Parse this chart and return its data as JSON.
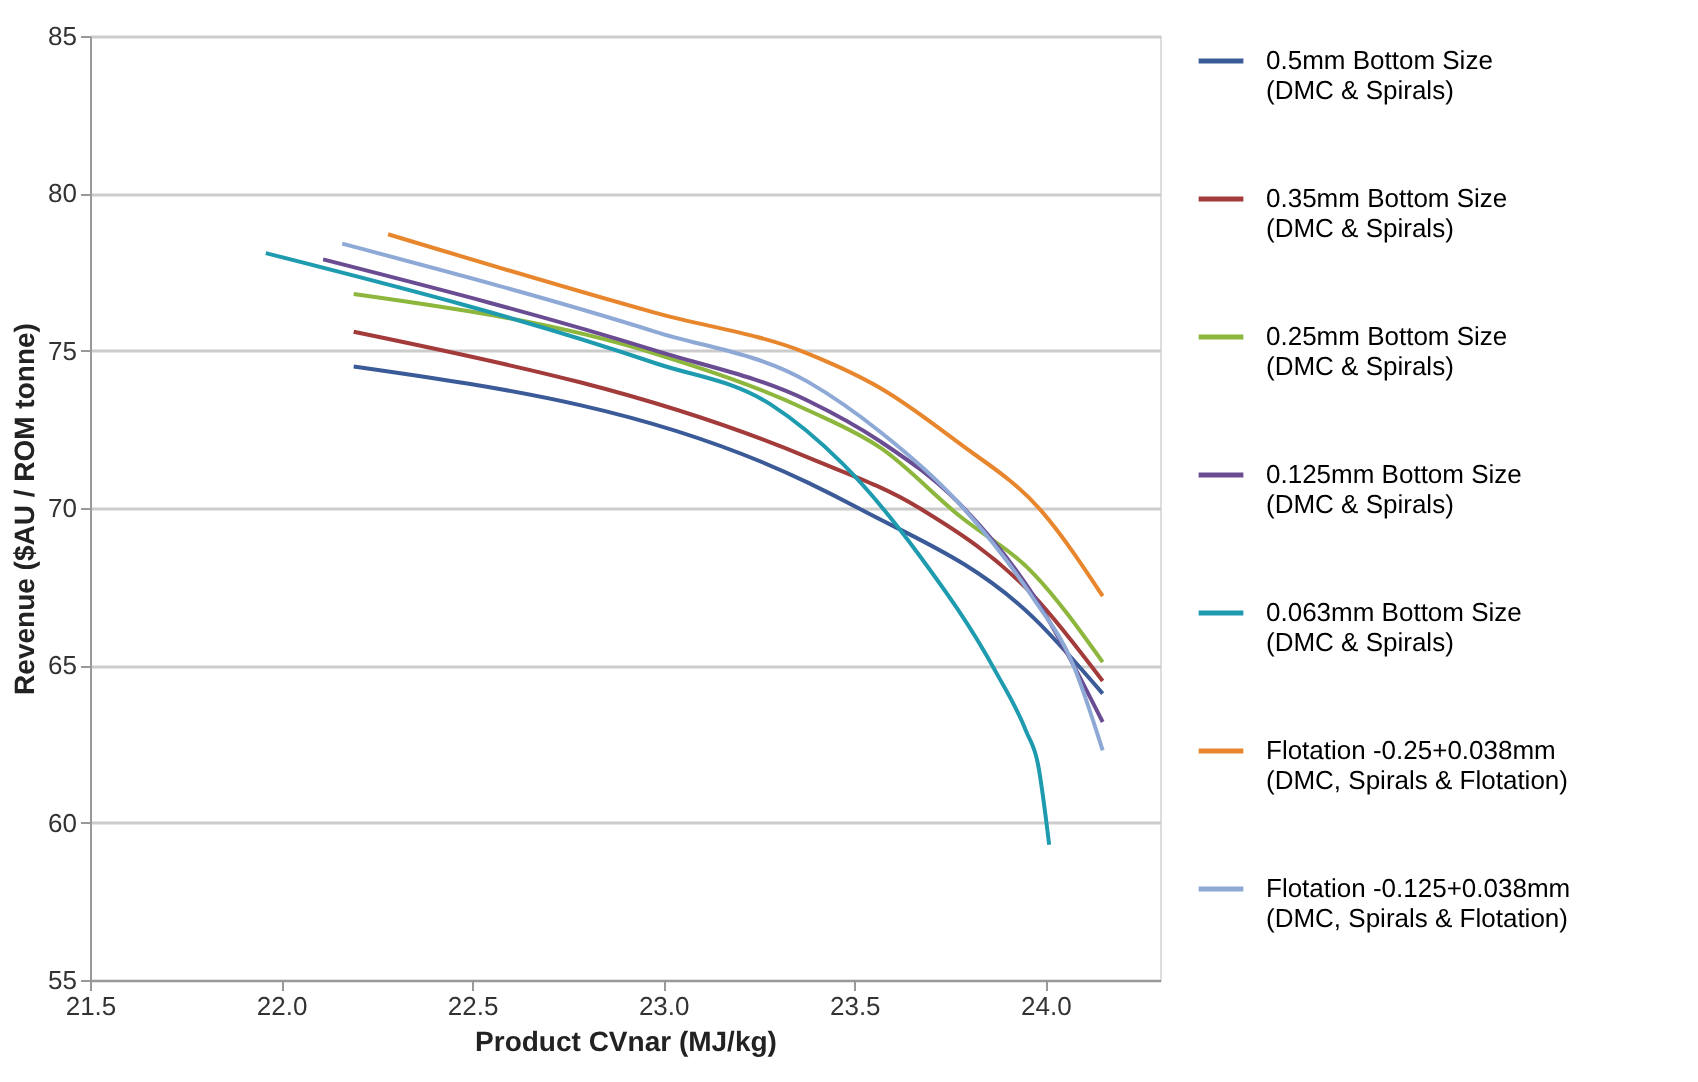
{
  "chart_data": {
    "type": "line",
    "xlabel": "Product CVnar (MJ/kg)",
    "ylabel": "Revenue ($AU / ROM tonne)",
    "xlim": [
      21.5,
      24.3
    ],
    "xticks": [
      {
        "value": 21.5,
        "label": "21.5"
      },
      {
        "value": 22,
        "label": "22.0"
      },
      {
        "value": 22.5,
        "label": "22.5"
      },
      {
        "value": 23,
        "label": "23.0"
      },
      {
        "value": 23.5,
        "label": "23.5"
      },
      {
        "value": 24,
        "label": "24.0"
      }
    ],
    "ylim": [
      55,
      85
    ],
    "yticks": [
      55,
      60,
      65,
      70,
      75,
      80,
      85
    ],
    "grid": "y",
    "legend": "right",
    "marker": "none",
    "line_style": "solid",
    "series": [
      {
        "name": "0.5mm Bottom Size (DMC & Spirals)",
        "color": "#3a5a98",
        "x": [
          22.19,
          23.38,
          23.51,
          23.97,
          24.15
        ],
        "values": [
          74.5,
          70.8,
          70.0,
          66.5,
          64.1
        ]
      },
      {
        "name": "0.35mm Bottom Size (DMC & Spirals)",
        "color": "#a23b3a",
        "x": [
          22.19,
          23.38,
          23.67,
          23.97,
          24.15
        ],
        "values": [
          75.6,
          71.6,
          70.0,
          67.2,
          64.5
        ]
      },
      {
        "name": "0.25mm Bottom Size (DMC & Spirals)",
        "color": "#8cb63c",
        "x": [
          22.19,
          22.98,
          23.38,
          23.57,
          23.77,
          23.97,
          24.15
        ],
        "values": [
          76.8,
          74.9,
          73.1,
          71.9,
          69.8,
          67.9,
          65.1
        ]
      },
      {
        "name": "0.125mm Bottom Size (DMC & Spirals)",
        "color": "#6a4c93",
        "x": [
          22.11,
          22.98,
          23.38,
          23.57,
          23.77,
          23.97,
          24.15
        ],
        "values": [
          77.9,
          75.0,
          73.4,
          72.1,
          70.2,
          67.2,
          63.2
        ]
      },
      {
        "name": "0.063mm Bottom Size (DMC & Spirals)",
        "color": "#1f9bb0",
        "x": [
          21.96,
          22.98,
          23.28,
          23.47,
          23.67,
          23.87,
          23.95,
          23.98,
          24.01
        ],
        "values": [
          78.1,
          74.6,
          73.3,
          71.4,
          68.5,
          64.8,
          62.9,
          61.9,
          59.3
        ]
      },
      {
        "name": "Flotation -0.25+0.038mm (DMC, Spirals & Flotation)",
        "color": "#e8862d",
        "x": [
          22.28,
          22.98,
          23.38,
          23.57,
          23.77,
          23.99,
          24.15
        ],
        "values": [
          78.7,
          76.2,
          74.9,
          73.8,
          72.1,
          69.9,
          67.2
        ]
      },
      {
        "name": "Flotation -0.125+0.038mm (DMC, Spirals & Flotation)",
        "color": "#8ea9d6",
        "x": [
          22.16,
          22.98,
          23.38,
          23.57,
          23.77,
          23.97,
          24.07,
          24.15
        ],
        "values": [
          78.4,
          75.6,
          74.0,
          72.4,
          70.2,
          67.1,
          65.1,
          62.3
        ]
      }
    ]
  }
}
